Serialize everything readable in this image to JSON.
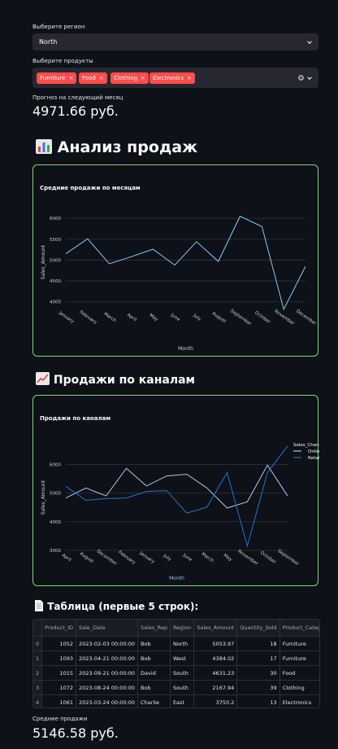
{
  "region": {
    "label": "Выберите регион",
    "value": "North"
  },
  "products": {
    "label": "Выберите продукты",
    "tags": [
      "Furniture",
      "Food",
      "Clothing",
      "Electronics"
    ],
    "tag_color": "#ff4b4b"
  },
  "forecast": {
    "label": "Прогноз на следующий месяц",
    "value": "4971.66 руб."
  },
  "section1": {
    "icon": "bar-chart-icon",
    "title": "Анализ продаж"
  },
  "chart1": {
    "type": "line",
    "title": "Средние продажи по месяцам",
    "xlabel": "Month",
    "ylabel": "Sales_Amount",
    "categories": [
      "January",
      "February",
      "March",
      "April",
      "May",
      "June",
      "July",
      "August",
      "September",
      "October",
      "November",
      "December"
    ],
    "values": [
      5150,
      5510,
      4910,
      5080,
      5260,
      4880,
      5440,
      4970,
      6050,
      5800,
      3820,
      4850
    ],
    "yticks": [
      "4000",
      "4500",
      "5000",
      "5500",
      "6000"
    ],
    "ylim": [
      3800,
      6100
    ],
    "color": "#83c9ff"
  },
  "section2": {
    "icon": "trend-chart-icon",
    "title": "Продажи по каналам"
  },
  "chart2": {
    "type": "line",
    "title": "Продажи по каналам",
    "xlabel": "Month",
    "ylabel": "Sales_Amount",
    "legend_title": "Sales_Channel",
    "categories": [
      "April",
      "August",
      "December",
      "February",
      "January",
      "July",
      "June",
      "March",
      "May",
      "November",
      "October",
      "September"
    ],
    "series": [
      {
        "name": "Online",
        "color": "#aec6e8",
        "values": [
          4830,
          5180,
          4900,
          5870,
          5250,
          5600,
          5660,
          5180,
          4480,
          4700,
          5980,
          4900
        ]
      },
      {
        "name": "Retail",
        "color": "#1f77d0",
        "values": [
          5240,
          4750,
          4810,
          4830,
          5060,
          5090,
          4300,
          4510,
          5720,
          3150,
          5720,
          6650
        ]
      }
    ],
    "yticks": [
      "3000",
      "4000",
      "5000",
      "6000"
    ],
    "ylim": [
      3000,
      6700
    ]
  },
  "section3": {
    "icon": "document-icon",
    "title": "Таблица (первые 5 строк):"
  },
  "table": {
    "columns": [
      "",
      "Product_ID",
      "Sale_Date",
      "Sales_Rep",
      "Region",
      "Sales_Amount",
      "Quantity_Sold",
      "Product_Categ"
    ],
    "rows": [
      [
        "0",
        "1052",
        "2023-02-03 00:00:00",
        "Bob",
        "North",
        "5053.97",
        "18",
        "Furniture"
      ],
      [
        "1",
        "1093",
        "2023-04-21 00:00:00",
        "Bob",
        "West",
        "4384.02",
        "17",
        "Furniture"
      ],
      [
        "2",
        "1015",
        "2023-09-21 00:00:00",
        "David",
        "South",
        "4631.23",
        "30",
        "Food"
      ],
      [
        "3",
        "1072",
        "2023-08-24 00:00:00",
        "Bob",
        "South",
        "2167.94",
        "39",
        "Clothing"
      ],
      [
        "4",
        "1061",
        "2023-03-24 00:00:00",
        "Charlie",
        "East",
        "3750.2",
        "13",
        "Electronics"
      ]
    ]
  },
  "avg_sales": {
    "label": "Средние продажи",
    "value": "5146.58 руб."
  }
}
